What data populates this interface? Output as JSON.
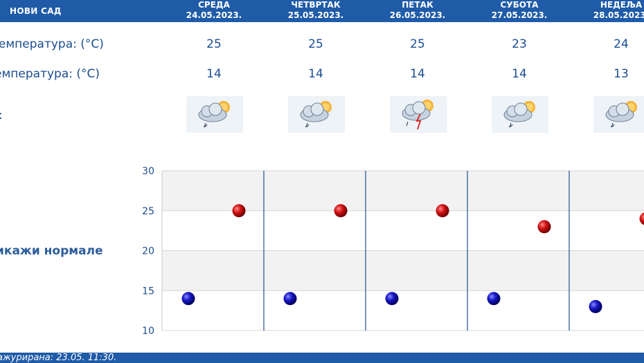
{
  "header": {
    "city": "НОВИ САД",
    "days": [
      {
        "name": "СРЕДА",
        "date": "24.05.2023."
      },
      {
        "name": "ЧЕТВРТАК",
        "date": "25.05.2023."
      },
      {
        "name": "ПЕТАК",
        "date": "26.05.2023."
      },
      {
        "name": "СУБОТА",
        "date": "27.05.2023."
      },
      {
        "name": "НЕДЕЉА",
        "date": "28.05.2023."
      }
    ]
  },
  "rows": {
    "max_label": "температура: (°C)",
    "min_label": "емпература: (°C)",
    "icon_label": ":",
    "max": [
      "25",
      "25",
      "25",
      "23",
      "24"
    ],
    "min": [
      "14",
      "14",
      "14",
      "14",
      "13"
    ],
    "icons": [
      "cloud-rain-sun-icon",
      "cloud-rain-sun-icon",
      "cloud-storm-sun-icon",
      "cloud-rain-sun-icon",
      "cloud-rain-sun-icon"
    ]
  },
  "normals_label": "икажи нормале",
  "chart_data": {
    "type": "scatter",
    "ylim": [
      10,
      30
    ],
    "yticks": [
      "30",
      "25",
      "20",
      "15",
      "10"
    ],
    "series": [
      {
        "values": [
          25,
          25,
          25,
          23,
          24
        ],
        "color": "#c81010"
      },
      {
        "values": [
          14,
          14,
          14,
          14,
          13
        ],
        "color": "#1414b4"
      }
    ]
  },
  "footer": {
    "updated": "ажурирана:  23.05. 11:30."
  }
}
